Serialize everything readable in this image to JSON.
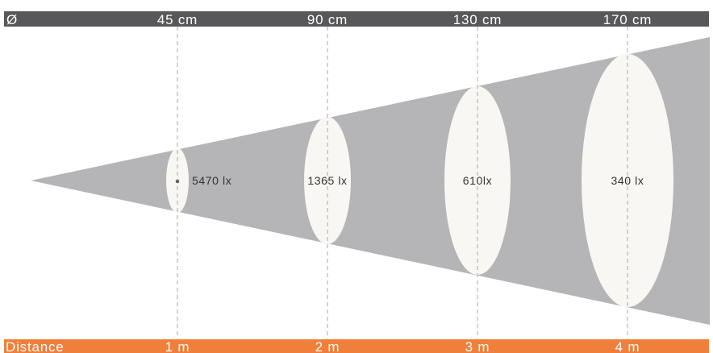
{
  "header_bar": {
    "symbol": "Ø",
    "color": "#58585a",
    "text_color": "#ffffff"
  },
  "footer_bar": {
    "label": "Distance",
    "color": "#f07f3c",
    "text_color": "#ffffff"
  },
  "beam": {
    "color": "#b5b5b8",
    "spot_color": "#f8f7f4",
    "guide_color": "#a8a8a8"
  },
  "measurements": [
    {
      "distance": "1 m",
      "diameter": "45 cm",
      "illuminance": "5470 lx",
      "has_center_dot": true
    },
    {
      "distance": "2 m",
      "diameter": "90 cm",
      "illuminance": "1365 lx",
      "has_center_dot": false
    },
    {
      "distance": "3 m",
      "diameter": "130 cm",
      "illuminance": "610lx",
      "has_center_dot": false
    },
    {
      "distance": "4 m",
      "diameter": "170 cm",
      "illuminance": "340 lx",
      "has_center_dot": false
    }
  ]
}
